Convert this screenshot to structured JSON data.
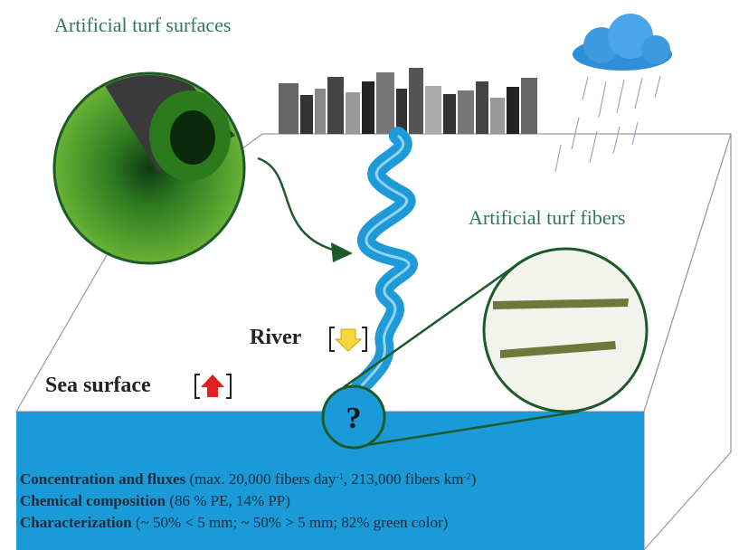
{
  "labels": {
    "turf_surfaces": "Artificial turf surfaces",
    "turf_fibers": "Artificial turf fibers",
    "river": "River",
    "sea_surface": "Sea surface",
    "question": "?"
  },
  "findings": [
    {
      "heading": "Concentration and fluxes",
      "parts": [
        " (max. 20,000 fibers day",
        "-1",
        ", 213,000 fibers km",
        "-2",
        ")"
      ]
    },
    {
      "heading": "Chemical composition",
      "parts": [
        " (86 % PE, 14% PP)"
      ]
    },
    {
      "heading": "Characterization",
      "parts": [
        " (~ 50% < 5 mm; ~ 50% > 5 mm; 82% green color)"
      ]
    }
  ]
}
